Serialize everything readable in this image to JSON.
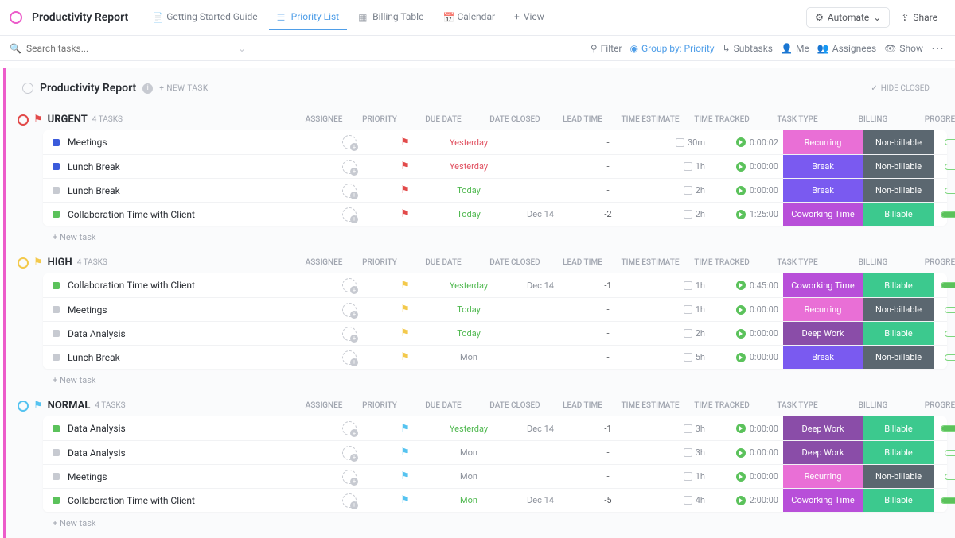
{
  "header": {
    "title": "Productivity Report",
    "tabs": [
      {
        "label": "Getting Started Guide",
        "active": false
      },
      {
        "label": "Priority List",
        "active": true
      },
      {
        "label": "Billing Table",
        "active": false
      },
      {
        "label": "Calendar",
        "active": false
      }
    ],
    "view_btn": "View",
    "automate_btn": "Automate",
    "share_btn": "Share"
  },
  "toolbar": {
    "search_placeholder": "Search tasks...",
    "filter": "Filter",
    "group_by": "Group by: Priority",
    "subtasks": "Subtasks",
    "me": "Me",
    "assignees": "Assignees",
    "show": "Show"
  },
  "section": {
    "title": "Productivity Report",
    "new_task": "+ NEW TASK",
    "hide_closed": "HIDE CLOSED"
  },
  "columns": [
    "ASSIGNEE",
    "PRIORITY",
    "DUE DATE",
    "DATE CLOSED",
    "LEAD TIME",
    "TIME ESTIMATE",
    "TIME TRACKED",
    "TASK TYPE",
    "BILLING",
    "PROGRESS"
  ],
  "new_task_row": "+ New task",
  "colors": {
    "urgent_flag": "#e24a4a",
    "high_flag": "#f3c94b",
    "normal_flag": "#55c3f0",
    "tag_recurring": "#e96fd6",
    "tag_break": "#7a5af0",
    "tag_coworking": "#b84fd9",
    "tag_deepwork": "#8a4da8",
    "tag_billable": "#3cc98e",
    "tag_nonbillable": "#5b6770"
  },
  "groups": [
    {
      "name": "URGENT",
      "flag_color": "#e24a4a",
      "count": "4 TASKS",
      "rows": [
        {
          "sq": "#3b5bdb",
          "name": "Meetings",
          "due": "Yesterday",
          "due_cls": "due-y",
          "closed": "",
          "lead": "-",
          "est": "30m",
          "track": "0:00:02",
          "type": "Recurring",
          "type_c": "tag_recurring",
          "bill": "Non-billable",
          "bill_c": "tag_nonbillable",
          "prog": 0
        },
        {
          "sq": "#3b5bdb",
          "name": "Lunch Break",
          "due": "Yesterday",
          "due_cls": "due-y",
          "closed": "",
          "lead": "-",
          "est": "1h",
          "track": "0:00:00",
          "type": "Break",
          "type_c": "tag_break",
          "bill": "Non-billable",
          "bill_c": "tag_nonbillable",
          "prog": 0
        },
        {
          "sq": "#c7cad1",
          "name": "Lunch Break",
          "due": "Today",
          "due_cls": "due-t",
          "closed": "",
          "lead": "-",
          "est": "2h",
          "track": "0:00:00",
          "type": "Break",
          "type_c": "tag_break",
          "bill": "Non-billable",
          "bill_c": "tag_nonbillable",
          "prog": 0
        },
        {
          "sq": "#5bc25b",
          "name": "Collaboration Time with Client",
          "due": "Today",
          "due_cls": "due-t",
          "closed": "Dec 14",
          "lead": "-2",
          "est": "2h",
          "track": "1:25:00",
          "type": "Coworking Time",
          "type_c": "tag_coworking",
          "bill": "Billable",
          "bill_c": "tag_billable",
          "prog": 100
        }
      ]
    },
    {
      "name": "HIGH",
      "flag_color": "#f3c94b",
      "count": "4 TASKS",
      "rows": [
        {
          "sq": "#5bc25b",
          "name": "Collaboration Time with Client",
          "due": "Yesterday",
          "due_cls": "due-t",
          "closed": "Dec 14",
          "lead": "-1",
          "est": "1h",
          "track": "0:45:00",
          "type": "Coworking Time",
          "type_c": "tag_coworking",
          "bill": "Billable",
          "bill_c": "tag_billable",
          "prog": 100
        },
        {
          "sq": "#c7cad1",
          "name": "Meetings",
          "due": "Today",
          "due_cls": "due-t",
          "closed": "",
          "lead": "-",
          "est": "1h",
          "track": "0:00:00",
          "type": "Recurring",
          "type_c": "tag_recurring",
          "bill": "Non-billable",
          "bill_c": "tag_nonbillable",
          "prog": 0
        },
        {
          "sq": "#c7cad1",
          "name": "Data Analysis",
          "due": "Today",
          "due_cls": "due-t",
          "closed": "",
          "lead": "-",
          "est": "2h",
          "track": "0:00:00",
          "type": "Deep Work",
          "type_c": "tag_deepwork",
          "bill": "Billable",
          "bill_c": "tag_billable",
          "prog": 0
        },
        {
          "sq": "#c7cad1",
          "name": "Lunch Break",
          "due": "Mon",
          "due_cls": "due-n",
          "closed": "",
          "lead": "-",
          "est": "5h",
          "track": "0:00:00",
          "type": "Break",
          "type_c": "tag_break",
          "bill": "Non-billable",
          "bill_c": "tag_nonbillable",
          "prog": 0
        }
      ]
    },
    {
      "name": "NORMAL",
      "flag_color": "#55c3f0",
      "count": "4 TASKS",
      "rows": [
        {
          "sq": "#5bc25b",
          "name": "Data Analysis",
          "due": "Yesterday",
          "due_cls": "due-t",
          "closed": "Dec 14",
          "lead": "-1",
          "est": "3h",
          "track": "0:00:00",
          "type": "Deep Work",
          "type_c": "tag_deepwork",
          "bill": "Billable",
          "bill_c": "tag_billable",
          "prog": 100
        },
        {
          "sq": "#c7cad1",
          "name": "Data Analysis",
          "due": "Mon",
          "due_cls": "due-n",
          "closed": "",
          "lead": "-",
          "est": "3h",
          "track": "0:00:00",
          "type": "Deep Work",
          "type_c": "tag_deepwork",
          "bill": "Billable",
          "bill_c": "tag_billable",
          "prog": 0
        },
        {
          "sq": "#c7cad1",
          "name": "Meetings",
          "due": "Mon",
          "due_cls": "due-n",
          "closed": "",
          "lead": "-",
          "est": "1h",
          "track": "0:00:00",
          "type": "Recurring",
          "type_c": "tag_recurring",
          "bill": "Non-billable",
          "bill_c": "tag_nonbillable",
          "prog": 0
        },
        {
          "sq": "#5bc25b",
          "name": "Collaboration Time with Client",
          "due": "Mon",
          "due_cls": "due-t",
          "closed": "Dec 14",
          "lead": "-5",
          "est": "4h",
          "track": "2:00:00",
          "type": "Coworking Time",
          "type_c": "tag_coworking",
          "bill": "Billable",
          "bill_c": "tag_billable",
          "prog": 100
        }
      ]
    }
  ]
}
